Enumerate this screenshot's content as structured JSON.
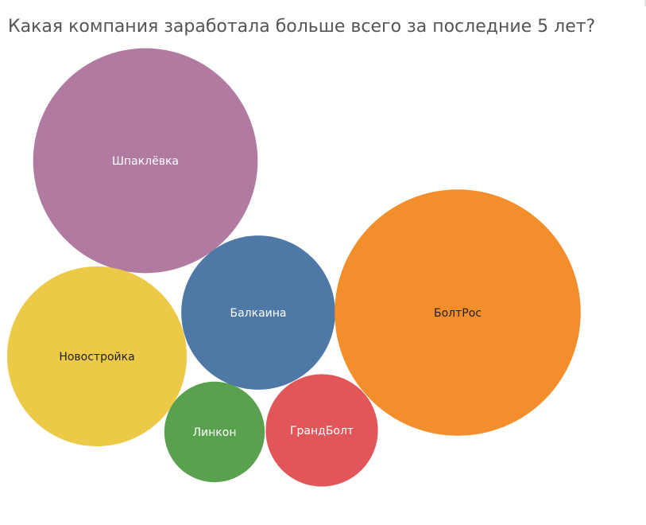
{
  "chart_data": {
    "type": "bubble",
    "title": "Какая компания заработала больше всего за последние 5 лет?",
    "categories": [
      "Шпаклёвка",
      "Новостройка",
      "Балкаина",
      "Линкон",
      "ГрандБолт",
      "БолтРос"
    ],
    "values": [
      20,
      12.8,
      9.4,
      4,
      5,
      24
    ],
    "colors": [
      "#b07aa1",
      "#edc948",
      "#4e79a7",
      "#59a14f",
      "#e15759",
      "#f28e2b"
    ]
  }
}
